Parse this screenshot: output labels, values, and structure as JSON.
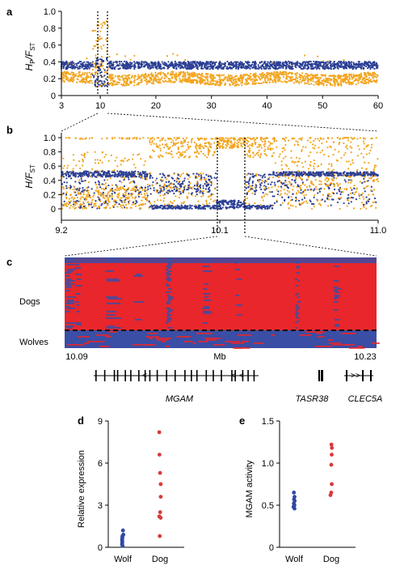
{
  "colors": {
    "hp": "#f2a51f",
    "fst": "#2b3f95",
    "dog_hap": "#e8262b",
    "wolf_hap": "#3a4ea5",
    "dog_pt": "#d9383a",
    "wolf_pt": "#2f49a3"
  },
  "panel_labels": {
    "a": "a",
    "b": "b",
    "c": "c",
    "d": "d",
    "e": "e"
  },
  "panel_c": {
    "row_dogs": "Dogs",
    "row_wolves": "Wolves",
    "x_start": "10.09",
    "x_mid": "Mb",
    "x_end": "10.23",
    "genes": [
      {
        "name": "MGAM"
      },
      {
        "name": "TASR38"
      },
      {
        "name": "CLEC5A"
      }
    ]
  },
  "chart_data": [
    {
      "type": "scatter",
      "panel": "a",
      "ylabel_main": "H",
      "ylabel_sub1": "P",
      "ylabel_mid": "/F",
      "ylabel_sub2": "ST",
      "xlim": [
        3,
        60
      ],
      "ylim": [
        0,
        1
      ],
      "xticks": [
        "3",
        "10",
        "20",
        "30",
        "40",
        "50",
        "60"
      ],
      "yticks": [
        "0",
        "0.2",
        "0.4",
        "0.6",
        "0.8",
        "1.0"
      ],
      "series": [
        {
          "color": "#f2a51f",
          "baseline": 0.2,
          "spread": 0.06
        },
        {
          "color": "#2b3f95",
          "baseline": 0.36,
          "spread": 0.04
        }
      ],
      "highlight": [
        9.2,
        11.0
      ],
      "grid": false
    },
    {
      "type": "scatter",
      "panel": "b",
      "ylabel_main": "H/F",
      "ylabel_sub": "ST",
      "xlim": [
        9.2,
        11.0
      ],
      "ylim": [
        0,
        1
      ],
      "xticks": [
        "9.2",
        "10.1",
        "11.0"
      ],
      "yticks": [
        "0",
        "0.2",
        "0.4",
        "0.6",
        "0.8",
        "1.0"
      ],
      "highlight": [
        10.09,
        10.23
      ],
      "grid": false
    },
    {
      "type": "scatter",
      "panel": "d",
      "ylabel": "Relative expression",
      "ylim": [
        0,
        9
      ],
      "yticks": [
        "0",
        "3",
        "6",
        "9"
      ],
      "categories": [
        "Wolf",
        "Dog"
      ],
      "series": [
        {
          "name": "Wolf",
          "values": [
            1.2,
            0.9,
            0.8,
            0.7,
            0.6,
            0.5,
            0.4,
            0.3,
            0.2,
            0.1
          ]
        },
        {
          "name": "Dog",
          "values": [
            8.2,
            6.6,
            5.3,
            4.5,
            3.6,
            2.5,
            2.2,
            2.1,
            0.8
          ]
        }
      ]
    },
    {
      "type": "scatter",
      "panel": "e",
      "ylabel": "MGAM activity",
      "ylim": [
        0,
        1.5
      ],
      "yticks": [
        "0",
        "0.5",
        "1.0",
        "1.5"
      ],
      "categories": [
        "Wolf",
        "Dog"
      ],
      "series": [
        {
          "name": "Wolf",
          "values": [
            0.65,
            0.6,
            0.57,
            0.55,
            0.52,
            0.5,
            0.48,
            0.46
          ]
        },
        {
          "name": "Dog",
          "values": [
            1.22,
            1.18,
            1.1,
            0.98,
            0.75,
            0.65,
            0.62
          ]
        }
      ]
    }
  ]
}
